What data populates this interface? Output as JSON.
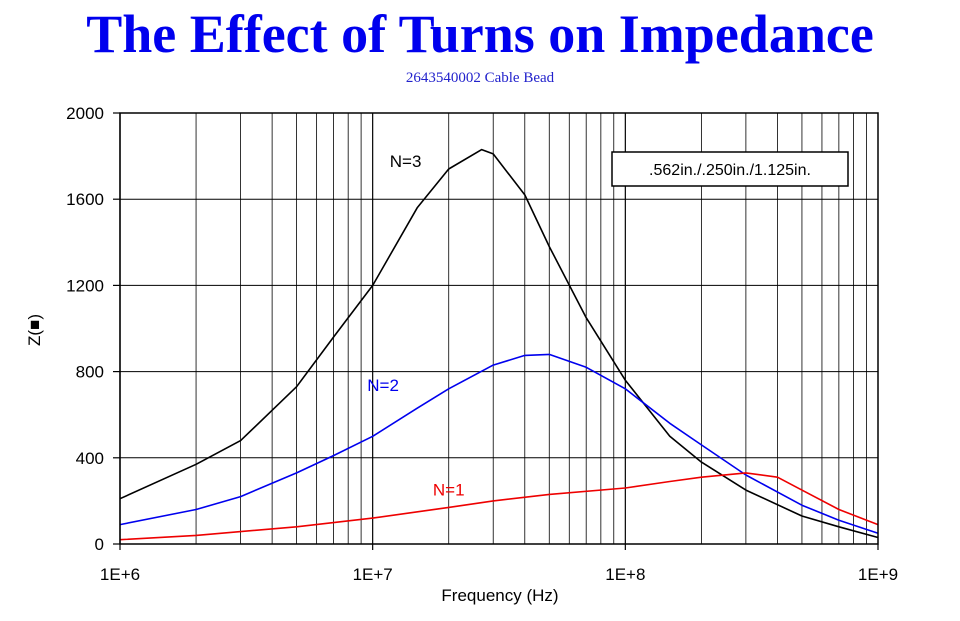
{
  "title": "The Effect of Turns on Impedance",
  "subtitle": "2643540002 Cable Bead",
  "chart_data": {
    "type": "line",
    "xlabel": "Frequency (Hz)",
    "ylabel": "Z(■)",
    "x_scale": "log",
    "xlim": [
      1000000,
      1000000000
    ],
    "ylim": [
      0,
      2000
    ],
    "x_ticks": [
      {
        "value": 1000000,
        "label": "1E+6"
      },
      {
        "value": 10000000,
        "label": "1E+7"
      },
      {
        "value": 100000000,
        "label": "1E+8"
      },
      {
        "value": 1000000000,
        "label": "1E+9"
      }
    ],
    "y_ticks": [
      {
        "value": 0,
        "label": "0"
      },
      {
        "value": 400,
        "label": "400"
      },
      {
        "value": 800,
        "label": "800"
      },
      {
        "value": 1200,
        "label": "1200"
      },
      {
        "value": 1600,
        "label": "1600"
      },
      {
        "value": 2000,
        "label": "2000"
      }
    ],
    "grid": true,
    "annotation": ".562in./.250in./1.125in.",
    "series": [
      {
        "name": "N=3",
        "color": "#000000",
        "x": [
          1000000,
          2000000,
          3000000,
          5000000,
          7000000,
          10000000,
          15000000,
          20000000,
          27000000,
          30000000,
          40000000,
          50000000,
          70000000,
          100000000,
          150000000,
          200000000,
          300000000,
          500000000,
          700000000,
          1000000000
        ],
        "y": [
          210,
          370,
          480,
          730,
          960,
          1200,
          1560,
          1740,
          1830,
          1810,
          1620,
          1380,
          1050,
          760,
          500,
          380,
          250,
          130,
          80,
          30
        ]
      },
      {
        "name": "N=2",
        "color": "#0000ee",
        "x": [
          1000000,
          2000000,
          3000000,
          5000000,
          7000000,
          10000000,
          15000000,
          20000000,
          30000000,
          40000000,
          50000000,
          70000000,
          100000000,
          150000000,
          200000000,
          300000000,
          500000000,
          700000000,
          1000000000
        ],
        "y": [
          90,
          160,
          220,
          330,
          410,
          500,
          630,
          720,
          830,
          875,
          880,
          820,
          720,
          560,
          460,
          320,
          180,
          110,
          50
        ]
      },
      {
        "name": "N=1",
        "color": "#ee0000",
        "x": [
          1000000,
          2000000,
          5000000,
          10000000,
          20000000,
          30000000,
          50000000,
          100000000,
          150000000,
          200000000,
          300000000,
          400000000,
          500000000,
          700000000,
          1000000000
        ],
        "y": [
          20,
          40,
          80,
          120,
          170,
          200,
          230,
          260,
          290,
          310,
          330,
          310,
          250,
          160,
          90
        ]
      }
    ],
    "series_labels": [
      {
        "text": "N=3",
        "x": 13500000,
        "y": 1750
      },
      {
        "text": "N=2",
        "x": 11000000,
        "y": 710
      },
      {
        "text": "N=1",
        "x": 20000000,
        "y": 225
      }
    ]
  }
}
